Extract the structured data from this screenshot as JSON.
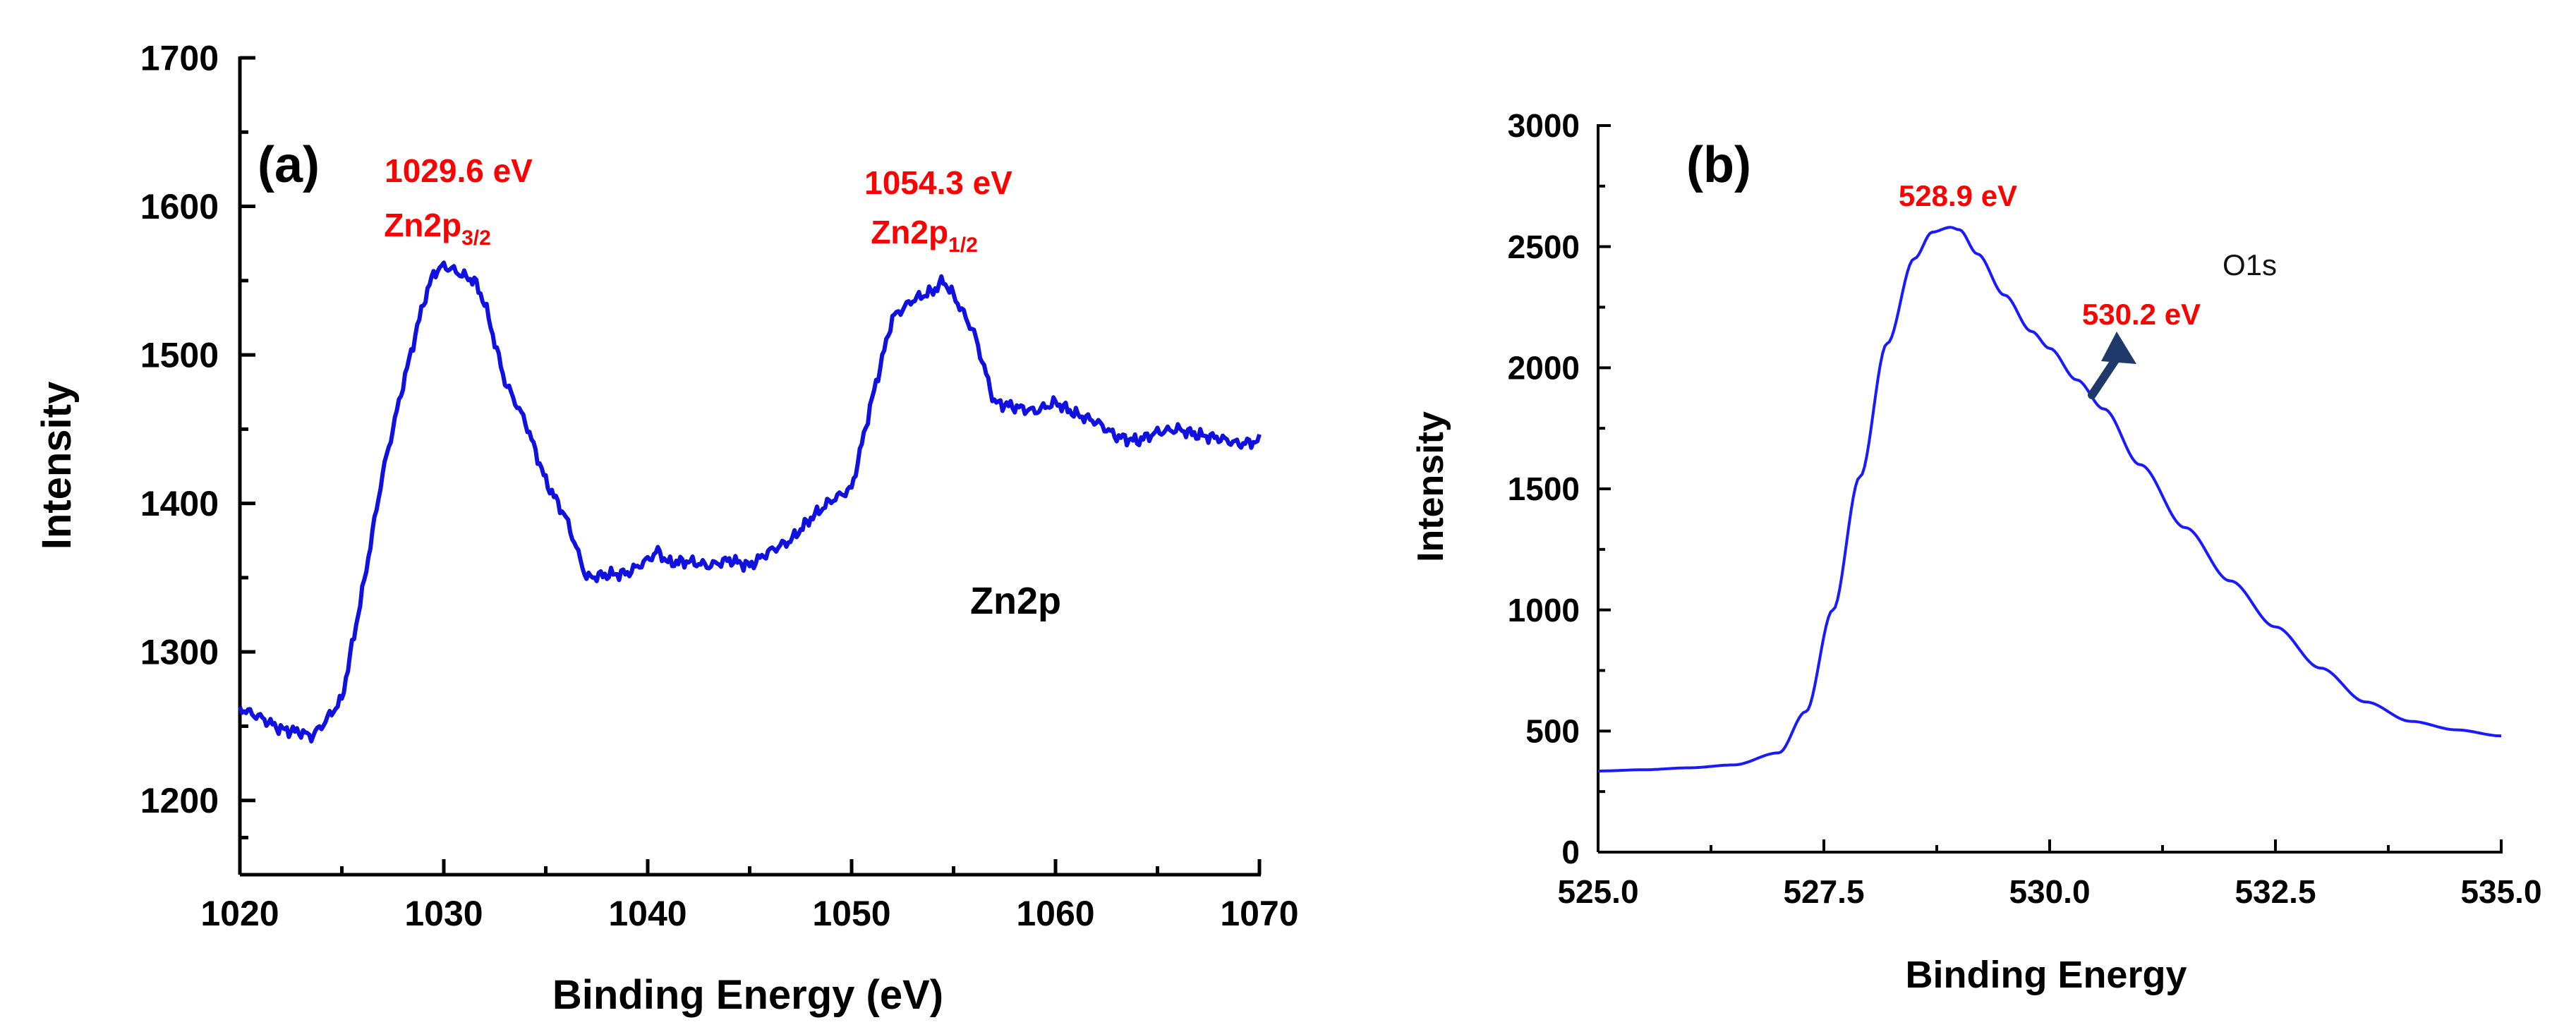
{
  "chart_data": [
    {
      "type": "line",
      "panel_label": "(a)",
      "xlabel": "Binding Energy (eV)",
      "ylabel": "Intensity",
      "xlim": [
        1020,
        1070
      ],
      "ylim": [
        1150,
        1700
      ],
      "xticks": [
        1020,
        1030,
        1040,
        1050,
        1060,
        1070
      ],
      "xtick_labels": [
        "1020",
        "1030",
        "1040",
        "1050",
        "1060",
        "1070"
      ],
      "yticks": [
        1200,
        1300,
        1400,
        1500,
        1600,
        1700
      ],
      "ytick_labels": [
        "1200",
        "1300",
        "1400",
        "1500",
        "1600",
        "1700"
      ],
      "series_name": "Zn2p",
      "series_color": "#1010e0",
      "annotation_color": "#ff0000",
      "annotations": {
        "peak1": {
          "energy": "1029.6 eV",
          "base": "Zn2p",
          "sub": "3/2"
        },
        "peak2": {
          "energy": "1054.3 eV",
          "base": "Zn2p",
          "sub": "1/2"
        }
      },
      "x": [
        1020,
        1021,
        1022,
        1023,
        1023.5,
        1024,
        1025,
        1026,
        1027,
        1028,
        1029,
        1029.5,
        1030,
        1030.5,
        1031,
        1031.5,
        1032,
        1033,
        1034,
        1035,
        1036,
        1037,
        1038,
        1039,
        1040,
        1040.5,
        1041,
        1042,
        1043,
        1044,
        1045,
        1046,
        1047,
        1048,
        1049,
        1050,
        1051,
        1052,
        1053,
        1054,
        1054.5,
        1055,
        1056,
        1057,
        1058,
        1059,
        1060,
        1061,
        1062,
        1063,
        1064,
        1065,
        1066,
        1067,
        1068,
        1069,
        1070
      ],
      "y": [
        1262,
        1256,
        1248,
        1246,
        1243,
        1250,
        1268,
        1340,
        1420,
        1480,
        1535,
        1555,
        1560,
        1557,
        1553,
        1550,
        1535,
        1482,
        1455,
        1415,
        1390,
        1350,
        1352,
        1353,
        1362,
        1368,
        1360,
        1361,
        1358,
        1362,
        1358,
        1368,
        1375,
        1390,
        1402,
        1410,
        1470,
        1525,
        1537,
        1543,
        1550,
        1540,
        1515,
        1468,
        1465,
        1462,
        1468,
        1460,
        1455,
        1445,
        1442,
        1448,
        1450,
        1446,
        1444,
        1440,
        1442
      ]
    },
    {
      "type": "line",
      "panel_label": "(b)",
      "xlabel": "Binding Energy",
      "ylabel": "Intensity",
      "xlim": [
        525.0,
        535.0
      ],
      "ylim": [
        0,
        3000
      ],
      "xticks": [
        525.0,
        527.5,
        530.0,
        532.5,
        535.0
      ],
      "xtick_labels": [
        "525.0",
        "527.5",
        "530.0",
        "532.5",
        "535.0"
      ],
      "yticks": [
        0,
        500,
        1000,
        1500,
        2000,
        2500,
        3000
      ],
      "ytick_labels": [
        "0",
        "500",
        "1000",
        "1500",
        "2000",
        "2500",
        "3000"
      ],
      "series_name": "O1s",
      "series_color": "#1a1aff",
      "annotation_color": "#ff0000",
      "arrow_color": "#1f3a6a",
      "annotations": {
        "peak1": {
          "energy": "528.9 eV"
        },
        "peak2": {
          "energy": "530.2 eV"
        }
      },
      "x": [
        525.0,
        525.5,
        526.0,
        526.5,
        527.0,
        527.3,
        527.6,
        527.9,
        528.2,
        528.5,
        528.7,
        528.9,
        529.0,
        529.2,
        529.5,
        529.8,
        530.0,
        530.3,
        530.6,
        531.0,
        531.5,
        532.0,
        532.5,
        533.0,
        533.5,
        534.0,
        534.5,
        535.0
      ],
      "y": [
        335,
        340,
        348,
        360,
        410,
        580,
        1000,
        1550,
        2100,
        2450,
        2560,
        2580,
        2570,
        2470,
        2300,
        2150,
        2080,
        1950,
        1830,
        1600,
        1340,
        1120,
        930,
        760,
        620,
        540,
        505,
        480
      ]
    }
  ]
}
